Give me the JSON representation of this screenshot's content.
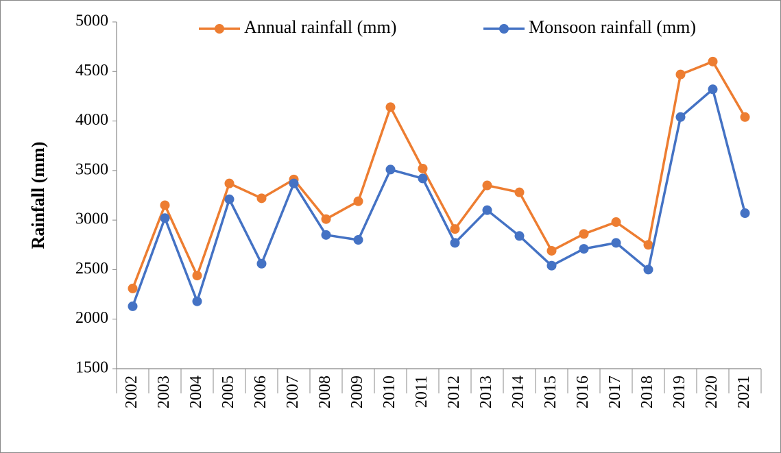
{
  "chart_data": {
    "type": "line",
    "y_label": "Rainfall (mm)",
    "categories": [
      "2002",
      "2003",
      "2004",
      "2005",
      "2006",
      "2007",
      "2008",
      "2009",
      "2010",
      "2011",
      "2012",
      "2013",
      "2014",
      "2015",
      "2016",
      "2017",
      "2018",
      "2019",
      "2020",
      "2021"
    ],
    "series": [
      {
        "name": "Annual rainfall (mm)",
        "color": "#ed7d31",
        "values": [
          2310,
          3150,
          2440,
          3370,
          3220,
          3410,
          3010,
          3190,
          4140,
          3520,
          2910,
          3350,
          3280,
          2690,
          2860,
          2980,
          2750,
          4470,
          4600,
          4040
        ]
      },
      {
        "name": "Monsoon rainfall (mm)",
        "color": "#4472c4",
        "values": [
          2130,
          3020,
          2180,
          3210,
          2560,
          3370,
          2850,
          2800,
          3510,
          3420,
          2770,
          3100,
          2840,
          2540,
          2710,
          2770,
          2500,
          4040,
          4320,
          3070
        ]
      }
    ],
    "ylim": [
      1500,
      5000
    ],
    "yticks": [
      1500,
      2000,
      2500,
      3000,
      3500,
      4000,
      4500,
      5000
    ],
    "legend": "top",
    "grid": false
  }
}
